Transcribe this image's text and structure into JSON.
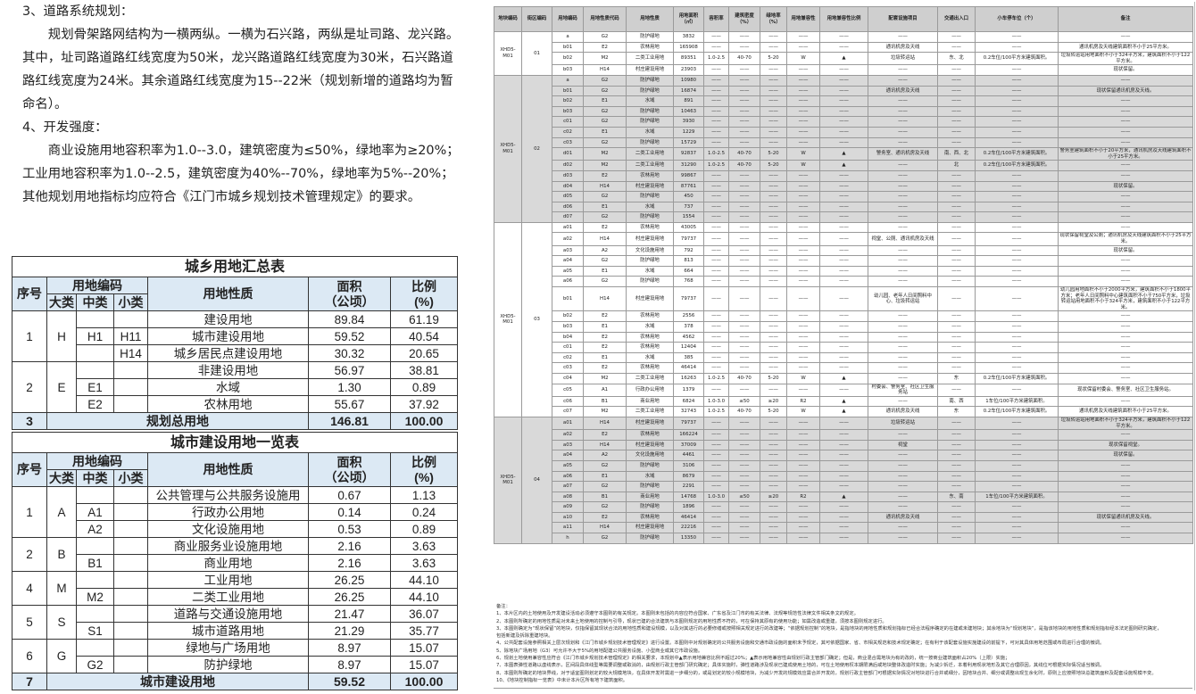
{
  "text": {
    "h3": "3、道路系统规划：",
    "p3": "规划骨架路网结构为一横两纵。一横为石兴路，两纵是址司路、龙兴路。其中，址司路道路红线宽度为50米，龙兴路道路红线宽度为30米，石兴路道路红线宽度为24米。其余道路红线宽度为15--22米（规划新增的道路均为暂命名）。",
    "h4": "4、开发强度：",
    "p4": "商业设施用地容积率为1.0--3.0，建筑密度为≤50%，绿地率为≥20%；工业用地容积率为1.0--2.5，建筑密度为40%--70%，绿地率为5%--20%；其他规划用地指标均应符合《江门市城乡规划技术管理规定》的要求。"
  },
  "header_labels": {
    "seq": "序号",
    "code": "用地编码",
    "major": "大类",
    "mid": "中类",
    "minor": "小类",
    "nature": "用地性质",
    "area": "面积",
    "area_unit": "（公顷）",
    "ratio": "比例",
    "ratio_unit": "(%)"
  },
  "table1": {
    "title": "城乡用地汇总表",
    "groups": [
      {
        "seq": "1",
        "major": "H",
        "rows": [
          [
            "",
            "",
            "建设用地",
            "89.84",
            "61.19"
          ],
          [
            "H1",
            "H11",
            "城市建设用地",
            "59.52",
            "40.54"
          ],
          [
            "",
            "H14",
            "城乡居民点建设用地",
            "30.32",
            "20.65"
          ]
        ]
      },
      {
        "seq": "2",
        "major": "E",
        "rows": [
          [
            "",
            "",
            "非建设用地",
            "56.97",
            "38.81"
          ],
          [
            "E1",
            "",
            "水域",
            "1.30",
            "0.89"
          ],
          [
            "E2",
            "",
            "农林用地",
            "55.67",
            "37.92"
          ]
        ]
      }
    ],
    "total": {
      "seq": "3",
      "label": "规划总用地",
      "area": "146.81",
      "ratio": "100.00"
    }
  },
  "table2": {
    "title": "城市建设用地一览表",
    "groups": [
      {
        "seq": "1",
        "major": "A",
        "rows": [
          [
            "",
            "",
            "公共管理与公共服务设施用",
            "0.67",
            "1.13"
          ],
          [
            "A1",
            "",
            "行政办公用地",
            "0.14",
            "0.24"
          ],
          [
            "A2",
            "",
            "文化设施用地",
            "0.53",
            "0.89"
          ]
        ]
      },
      {
        "seq": "2",
        "major": "B",
        "rows": [
          [
            "",
            "",
            "商业服务业设施用地",
            "2.16",
            "3.63"
          ],
          [
            "B1",
            "",
            "商业用地",
            "2.16",
            "3.63"
          ]
        ]
      },
      {
        "seq": "4",
        "major": "M",
        "rows": [
          [
            "",
            "",
            "工业用地",
            "26.25",
            "44.10"
          ],
          [
            "M2",
            "",
            "二类工业用地",
            "26.25",
            "44.10"
          ]
        ]
      },
      {
        "seq": "5",
        "major": "S",
        "rows": [
          [
            "",
            "",
            "道路与交通设施用地",
            "21.47",
            "36.07"
          ],
          [
            "S1",
            "",
            "城市道路用地",
            "21.29",
            "35.77"
          ]
        ]
      },
      {
        "seq": "6",
        "major": "G",
        "rows": [
          [
            "",
            "",
            "绿地与广场用地",
            "8.97",
            "15.07"
          ],
          [
            "G2",
            "",
            "防护绿地",
            "8.97",
            "15.07"
          ]
        ]
      }
    ],
    "total": {
      "seq": "7",
      "label": "城市建设用地",
      "area": "59.52",
      "ratio": "100.00"
    }
  },
  "right_table": {
    "columns": [
      "地块编码",
      "街区编码",
      "用地编码",
      "用地性质代码",
      "用地性质",
      "用地面积（㎡）",
      "容积率",
      "建筑密度（%）",
      "绿地率（%）",
      "用地兼容性",
      "用地兼容性比例",
      "配套设施项目",
      "交通出入口",
      "小车停车位（个）",
      "备注"
    ],
    "colors": {
      "header": "#cfcfcf",
      "shaded_block": "#d9d9d9"
    },
    "blocks": [
      {
        "plot": "XHD5-M01",
        "block": "01",
        "shaded": false,
        "rows": [
          [
            "a",
            "G2",
            "防护绿地",
            "3832",
            "——",
            "——",
            "——",
            "——",
            "——",
            "——",
            "——",
            "——",
            "——"
          ],
          [
            "b01",
            "E2",
            "农林用地",
            "165908",
            "——",
            "——",
            "——",
            "——",
            "——",
            "通讯机房及天线",
            "——",
            "——",
            "通讯机房及天线建筑面积不小于25平方米。"
          ],
          [
            "b02",
            "M2",
            "二类工业用地",
            "89351",
            "1.0-2.5",
            "40-70",
            "5-20",
            "W",
            "▲",
            "垃圾转运站",
            "东、北",
            "0.2车位/100平方米建筑面积。",
            "垃圾转运站用地面积不小于324平方米，建筑面积不小于122平方米。"
          ],
          [
            "b03",
            "H14",
            "村庄建设用地",
            "23903",
            "——",
            "——",
            "——",
            "——",
            "——",
            "——",
            "——",
            "——",
            "现状保留。"
          ]
        ]
      },
      {
        "plot": "XHD5-M01",
        "block": "02",
        "shaded": true,
        "rows": [
          [
            "a",
            "G2",
            "防护绿地",
            "10980",
            "——",
            "——",
            "——",
            "——",
            "——",
            "——",
            "——",
            "——",
            "——"
          ],
          [
            "b01",
            "G2",
            "防护绿地",
            "16874",
            "——",
            "——",
            "——",
            "——",
            "——",
            "通讯机房及天线",
            "——",
            "——",
            "现状保留通讯机房及天线。"
          ],
          [
            "b02",
            "E1",
            "水域",
            "891",
            "——",
            "——",
            "——",
            "——",
            "——",
            "——",
            "——",
            "——",
            "——"
          ],
          [
            "b03",
            "G2",
            "防护绿地",
            "10463",
            "——",
            "——",
            "——",
            "——",
            "——",
            "——",
            "——",
            "——",
            "——"
          ],
          [
            "c01",
            "G2",
            "防护绿地",
            "3930",
            "——",
            "——",
            "——",
            "——",
            "——",
            "——",
            "——",
            "——",
            "——"
          ],
          [
            "c02",
            "E1",
            "水域",
            "1229",
            "——",
            "——",
            "——",
            "——",
            "——",
            "——",
            "——",
            "——",
            "——"
          ],
          [
            "c03",
            "G2",
            "防护绿地",
            "15729",
            "——",
            "——",
            "——",
            "——",
            "——",
            "——",
            "——",
            "——",
            "——"
          ],
          [
            "d01",
            "M2",
            "二类工业用地",
            "92837",
            "1.0-2.5",
            "40-70",
            "5-20",
            "W",
            "▲",
            "警务室、通讯机房及天线",
            "南、西、北",
            "0.2车位/100平方米建筑面积。",
            "警务室建筑面积不小于20平方米，通讯机房及天线建筑面积不小于25平方米。"
          ],
          [
            "d02",
            "M2",
            "二类工业用地",
            "31290",
            "1.0-2.5",
            "40-70",
            "5-20",
            "W",
            "▲",
            "——",
            "北",
            "0.2车位/100平方米建筑面积。",
            "——"
          ],
          [
            "d03",
            "E2",
            "农林用地",
            "99867",
            "——",
            "——",
            "——",
            "——",
            "——",
            "——",
            "——",
            "——",
            "——"
          ],
          [
            "d04",
            "H14",
            "村庄建设用地",
            "87761",
            "——",
            "——",
            "——",
            "——",
            "——",
            "——",
            "——",
            "——",
            "现状保留。"
          ],
          [
            "d05",
            "G2",
            "防护绿地",
            "450",
            "——",
            "——",
            "——",
            "——",
            "——",
            "——",
            "——",
            "——",
            "——"
          ],
          [
            "d06",
            "E1",
            "水域",
            "737",
            "——",
            "——",
            "——",
            "——",
            "——",
            "——",
            "——",
            "——",
            "——"
          ],
          [
            "d07",
            "G2",
            "防护绿地",
            "1554",
            "——",
            "——",
            "——",
            "——",
            "——",
            "——",
            "——",
            "——",
            "——"
          ]
        ]
      },
      {
        "plot": "XHD5-M01",
        "block": "03",
        "shaded": false,
        "rows": [
          [
            "a01",
            "E2",
            "农林用地",
            "43005",
            "——",
            "——",
            "——",
            "——",
            "——",
            "——",
            "——",
            "——",
            "——"
          ],
          [
            "a02",
            "H14",
            "村庄建设用地",
            "79737",
            "——",
            "——",
            "——",
            "——",
            "——",
            "祠堂、公厕、通讯机房及天线",
            "——",
            "——",
            "现状保留祠堂及公厕；通讯机房及天线建筑面积不小于25平方米。"
          ],
          [
            "a03",
            "A2",
            "文化设施用地",
            "792",
            "——",
            "——",
            "——",
            "——",
            "——",
            "——",
            "——",
            "——",
            "现状保留。"
          ],
          [
            "a04",
            "G2",
            "防护绿地",
            "813",
            "——",
            "——",
            "——",
            "——",
            "——",
            "——",
            "——",
            "——",
            "——"
          ],
          [
            "a05",
            "E1",
            "水域",
            "664",
            "——",
            "——",
            "——",
            "——",
            "——",
            "——",
            "——",
            "——",
            "——"
          ],
          [
            "a06",
            "G2",
            "防护绿地",
            "768",
            "——",
            "——",
            "——",
            "——",
            "——",
            "——",
            "——",
            "——",
            "——"
          ],
          [
            "b01",
            "H14",
            "村庄建设用地",
            "79737",
            "——",
            "——",
            "——",
            "——",
            "——",
            "幼儿园、老年人日间照料中心、垃圾转运站",
            "——",
            "——",
            "幼儿园用地面积不小于2000平方米，建筑面积不小于1800平方米；老年人日间照料中心建筑面积不小于750平方米，垃圾转运站用地面积不小于324平方米，建筑面积不小于122平方米。"
          ],
          [
            "b02",
            "E2",
            "农林用地",
            "2556",
            "——",
            "——",
            "——",
            "——",
            "——",
            "——",
            "——",
            "——",
            "——"
          ],
          [
            "b03",
            "E1",
            "水域",
            "378",
            "——",
            "——",
            "——",
            "——",
            "——",
            "——",
            "——",
            "——",
            "——"
          ],
          [
            "b04",
            "E2",
            "农林用地",
            "4562",
            "——",
            "——",
            "——",
            "——",
            "——",
            "——",
            "——",
            "——",
            "——"
          ],
          [
            "c01",
            "E2",
            "农林用地",
            "12404",
            "——",
            "——",
            "——",
            "——",
            "——",
            "——",
            "——",
            "——",
            "——"
          ],
          [
            "c02",
            "E1",
            "水域",
            "385",
            "——",
            "——",
            "——",
            "——",
            "——",
            "——",
            "——",
            "——",
            "——"
          ],
          [
            "c03",
            "E2",
            "农林用地",
            "46414",
            "——",
            "——",
            "——",
            "——",
            "——",
            "——",
            "——",
            "——",
            "——"
          ],
          [
            "c04",
            "M2",
            "二类工业用地",
            "16263",
            "1.0-2.5",
            "40-70",
            "5-20",
            "W",
            "▲",
            "——",
            "东",
            "0.2车位/100平方米建筑面积。",
            "——"
          ],
          [
            "c05",
            "A1",
            "行政办公用地",
            "1379",
            "——",
            "——",
            "——",
            "——",
            "——",
            "村委会、警务室、社区卫生服务站",
            "——",
            "——",
            "现状保留村委会、警务室、社区卫生服务站。"
          ],
          [
            "c06",
            "B1",
            "商业用地",
            "6824",
            "1.0-3.0",
            "≤50",
            "≥20",
            "R2",
            "▲",
            "——",
            "南、西",
            "1车位/100平方米建筑面积。",
            "——"
          ],
          [
            "c07",
            "M2",
            "二类工业用地",
            "32743",
            "1.0-2.5",
            "40-70",
            "5-20",
            "W",
            "▲",
            "通讯机房及天线",
            "东",
            "0.2车位/100平方米建筑面积。",
            "通讯机房及天线建筑面积不小于25平方米。"
          ]
        ]
      },
      {
        "plot": "XHD5-M01",
        "block": "04",
        "shaded": true,
        "rows": [
          [
            "a01",
            "H14",
            "村庄建设用地",
            "79737",
            "——",
            "——",
            "——",
            "——",
            "——",
            "垃圾转运站",
            "——",
            "——",
            "垃圾转运站用地面积不小于324平方米，建筑面积不小于122平方米。"
          ],
          [
            "a02",
            "E2",
            "农林用地",
            "166224",
            "——",
            "——",
            "——",
            "——",
            "——",
            "——",
            "——",
            "——",
            "——"
          ],
          [
            "a03",
            "H14",
            "村庄建设用地",
            "37009",
            "——",
            "——",
            "——",
            "——",
            "——",
            "祠堂",
            "——",
            "——",
            "现状保留祠堂。"
          ],
          [
            "a04",
            "A2",
            "文化设施用地",
            "4461",
            "——",
            "——",
            "——",
            "——",
            "——",
            "——",
            "——",
            "——",
            "现状保留。"
          ],
          [
            "a05",
            "G2",
            "防护绿地",
            "3106",
            "——",
            "——",
            "——",
            "——",
            "——",
            "——",
            "——",
            "——",
            "——"
          ],
          [
            "a06",
            "E1",
            "水域",
            "8679",
            "——",
            "——",
            "——",
            "——",
            "——",
            "——",
            "——",
            "——",
            "——"
          ],
          [
            "a07",
            "G2",
            "防护绿地",
            "2291",
            "——",
            "——",
            "——",
            "——",
            "——",
            "——",
            "——",
            "——",
            "——"
          ],
          [
            "a08",
            "B1",
            "商业用地",
            "14768",
            "1.0-3.0",
            "≤50",
            "≥20",
            "R2",
            "▲",
            "——",
            "东、南",
            "1车位/100平方米建筑面积。",
            "——"
          ],
          [
            "a09",
            "G2",
            "防护绿地",
            "1896",
            "——",
            "——",
            "——",
            "——",
            "——",
            "——",
            "——",
            "——",
            "——"
          ],
          [
            "a10",
            "E2",
            "农林用地",
            "46414",
            "——",
            "——",
            "——",
            "——",
            "——",
            "通讯机房及天线",
            "——",
            "——",
            "现状保留通讯机房及天线。"
          ],
          [
            "a11",
            "H14",
            "村庄建设用地",
            "22216",
            "——",
            "——",
            "——",
            "——",
            "——",
            "——",
            "——",
            "——",
            "——"
          ],
          [
            "h",
            "G2",
            "防护绿地",
            "13350",
            "——",
            "——",
            "——",
            "——",
            "——",
            "——",
            "——",
            "——",
            "——"
          ]
        ]
      }
    ]
  },
  "notes": {
    "title": "备注：",
    "items": [
      "1、本片区内的土地使用及开发建设活动必须遵守本图则的有关规定。本图则未包括的内容应符合国家、广东省及江门市的有关法律、法规等规范性法律文件相关条文的规定。",
      "2、本图则所确定的用地性质是对未来土地使用的控制与引导，现状已建的合法建筑与本图则规定的用地性质不符的，可在保持其原有的使用功能；如需改造或重建，须按本图则规定进行。",
      "3、本图则确定为“现状保留”的地块，仅指保留其现状合法的用地性质和建设规模，以及对其进行的必要修缮或按照相关规定进行的改建等；“依据规划控制”的地块，是指地块的用地性质和规划指标已经合法程序确定的在建或未建地块；其余地块为“规划地块”，是指该地块的用地性质和规划指标经本法定图则研究确定，",
      "包括新建及拆除重建地块。",
      "4、公共配套设施参照相关上层次规划和《江门市城乡规划技术管理规定》进行设置。本图则中对规划确定的公共服务设施和交通市政设施的面积未予规定，其可依据国家、省、市相关规范和技术规定确定；在有利于该配套设施实施建设的前提下，可对其具体用地范围或布局进行合理的微调。",
      "5、除地块广场用地（G3）可允许不大于5%的用地配建公共服务设施、小型商业或其它市政设施。",
      "6、规划土地使用兼容性应符合《江门市城乡规划技术管理规定》的相关要求，本规划中▲表示用地兼容比例不超过20%；▲表示用地兼容性由规划行政主管部门确定；但是，商业混合需地块为有的改的，统一按商业建筑面积占20%（上限）实施；",
      "7、本图表弹性道路以虚线表示，区间段具体线型等需要调整或取消的，由规划行政主管部门研究确定；具体实施时，弹性道路涉及现状已建成使用土地的，可在土地使用权本期限满后或地块整体改造时实施；为减少拆迁，本着利用现状地形及其它合理原因，其线位可根据实际情况适当微调。",
      "8、本图则所确定的地块界线，对于适宜图则划定的较大规模地块，在具体开发时需进一步细分的，或是划定的较小规模地块，为减少开发的规模效应需合并开发的，规划行政主管部门可根据实际情况对地块进行合并或细分，因地块合并、细分或调整出现生余化时，原则上应按照地块总建筑面积及配套设施规模不变。",
      "10、《地块控制指标一览表》中未计本片区所有地下建筑面积。"
    ]
  }
}
